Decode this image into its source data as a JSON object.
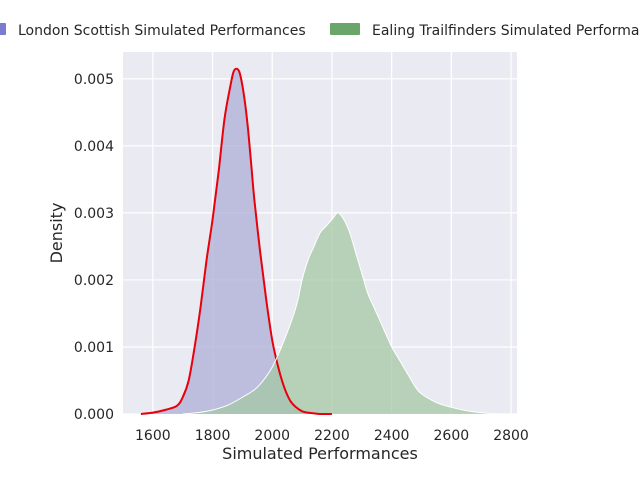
{
  "chart_data": {
    "type": "area",
    "title": "",
    "xlabel": "Simulated Performances",
    "ylabel": "Density",
    "xlim": [
      1500,
      2820
    ],
    "ylim": [
      0,
      0.0054
    ],
    "xticks": [
      1600,
      1800,
      2000,
      2200,
      2400,
      2600,
      2800
    ],
    "yticks": [
      0.0,
      0.001,
      0.002,
      0.003,
      0.004,
      0.005
    ],
    "ytick_labels": [
      "0.000",
      "0.001",
      "0.002",
      "0.003",
      "0.004",
      "0.005"
    ],
    "grid": true,
    "legend_position": "top",
    "background": "#eaeaf2",
    "series": [
      {
        "name": "London Scottish Simulated Performances",
        "color": "#7b7bd0",
        "fill": "#aeaed6",
        "line_color": "#e8000b",
        "x": [
          1560,
          1600,
          1640,
          1680,
          1700,
          1720,
          1740,
          1760,
          1780,
          1800,
          1820,
          1840,
          1860,
          1870,
          1880,
          1890,
          1900,
          1910,
          1920,
          1930,
          1940,
          1960,
          1980,
          2000,
          2020,
          2040,
          2060,
          2080,
          2100,
          2120,
          2140,
          2160,
          2180,
          2200
        ],
        "y": [
          0.0,
          2e-05,
          6e-05,
          0.00012,
          0.00025,
          0.0005,
          0.001,
          0.0016,
          0.0023,
          0.0029,
          0.0036,
          0.0044,
          0.0049,
          0.0051,
          0.00515,
          0.0051,
          0.0049,
          0.0046,
          0.0042,
          0.0037,
          0.0032,
          0.0024,
          0.0017,
          0.0011,
          0.0007,
          0.0004,
          0.0002,
          0.0001,
          4e-05,
          2e-05,
          1e-05,
          0.0,
          0.0,
          0.0
        ]
      },
      {
        "name": "Ealing Trailfinders Simulated Performances",
        "color": "#6aa56a",
        "fill": "#a6c8a6",
        "line_color": "#ffffff",
        "x": [
          1700,
          1750,
          1800,
          1850,
          1900,
          1950,
          2000,
          2040,
          2080,
          2100,
          2120,
          2140,
          2160,
          2180,
          2200,
          2220,
          2240,
          2260,
          2280,
          2300,
          2320,
          2340,
          2360,
          2380,
          2400,
          2420,
          2440,
          2460,
          2480,
          2500,
          2550,
          2600,
          2650,
          2700,
          2750,
          2800
        ],
        "y": [
          0.0,
          2e-05,
          6e-05,
          0.00013,
          0.00025,
          0.0004,
          0.0007,
          0.0011,
          0.0016,
          0.002,
          0.0023,
          0.0025,
          0.0027,
          0.0028,
          0.0029,
          0.003,
          0.0029,
          0.0027,
          0.0024,
          0.0021,
          0.0018,
          0.0016,
          0.0014,
          0.0012,
          0.001,
          0.00085,
          0.0007,
          0.00055,
          0.0004,
          0.0003,
          0.00017,
          0.0001,
          5e-05,
          2e-05,
          0.0,
          0.0
        ]
      }
    ]
  }
}
